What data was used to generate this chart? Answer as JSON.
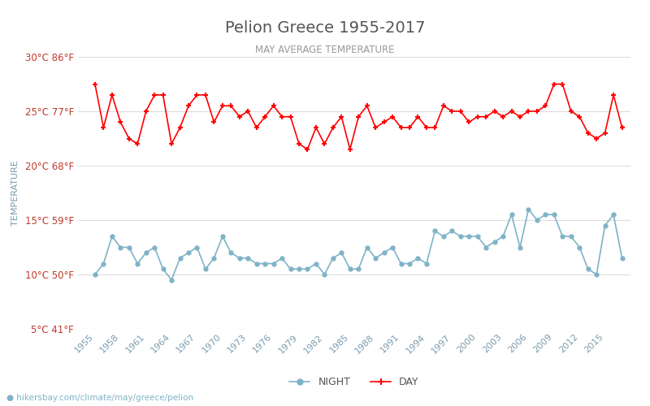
{
  "title": "Pelion Greece 1955-2017",
  "subtitle": "MAY AVERAGE TEMPERATURE",
  "ylabel": "TEMPERATURE",
  "xlabel_url": "hikersbay.com/climate/may/greece/pelion",
  "ylim": [
    5,
    30
  ],
  "yticks_c": [
    5,
    10,
    15,
    20,
    25,
    30
  ],
  "yticks_f": [
    41,
    50,
    59,
    68,
    77,
    86
  ],
  "years": [
    1955,
    1956,
    1957,
    1958,
    1959,
    1960,
    1961,
    1962,
    1963,
    1964,
    1965,
    1966,
    1967,
    1968,
    1969,
    1970,
    1971,
    1972,
    1973,
    1974,
    1975,
    1976,
    1977,
    1978,
    1979,
    1980,
    1981,
    1982,
    1983,
    1984,
    1985,
    1986,
    1987,
    1988,
    1989,
    1990,
    1991,
    1992,
    1993,
    1994,
    1995,
    1996,
    1997,
    1998,
    1999,
    2000,
    2001,
    2002,
    2003,
    2004,
    2005,
    2006,
    2007,
    2008,
    2009,
    2010,
    2011,
    2012,
    2013,
    2014,
    2015,
    2016,
    2017
  ],
  "day_temps": [
    27.5,
    23.5,
    26.5,
    24.0,
    22.5,
    22.0,
    25.0,
    26.5,
    26.5,
    22.0,
    23.5,
    25.5,
    26.5,
    26.5,
    24.0,
    25.5,
    25.5,
    24.5,
    25.0,
    23.5,
    24.5,
    25.5,
    24.5,
    24.5,
    22.0,
    21.5,
    23.5,
    22.0,
    23.5,
    24.5,
    21.5,
    24.5,
    25.5,
    23.5,
    24.0,
    24.5,
    23.5,
    23.5,
    24.5,
    23.5,
    23.5,
    25.5,
    25.0,
    25.0,
    24.0,
    24.5,
    24.5,
    25.0,
    24.5,
    25.0,
    24.5,
    25.0,
    25.0,
    25.5,
    27.5,
    27.5,
    25.0,
    24.5,
    23.0,
    22.5,
    23.0,
    26.5,
    23.5
  ],
  "night_temps": [
    10.0,
    11.0,
    13.5,
    12.5,
    12.5,
    11.0,
    12.0,
    12.5,
    10.5,
    9.5,
    11.5,
    12.0,
    12.5,
    10.5,
    11.5,
    13.5,
    12.0,
    11.5,
    11.5,
    11.0,
    11.0,
    11.0,
    11.5,
    10.5,
    10.5,
    10.5,
    11.0,
    10.0,
    11.5,
    12.0,
    10.5,
    10.5,
    12.5,
    11.5,
    12.0,
    12.5,
    11.0,
    11.0,
    11.5,
    11.0,
    14.0,
    13.5,
    14.0,
    13.5,
    13.5,
    13.5,
    12.5,
    13.0,
    13.5,
    15.5,
    12.5,
    16.0,
    15.0,
    15.5,
    15.5,
    13.5,
    13.5,
    12.5,
    10.5,
    10.0,
    14.5,
    15.5,
    11.5
  ],
  "day_color": "#ff0000",
  "night_color": "#7fb3c8",
  "background_color": "#ffffff",
  "grid_color": "#dddddd",
  "title_color": "#555555",
  "subtitle_color": "#999999",
  "ylabel_color": "#7a9cb0",
  "ytick_color": "#c0392b",
  "xtick_color": "#7a9cb0",
  "xtick_years": [
    1955,
    1958,
    1961,
    1964,
    1967,
    1970,
    1973,
    1976,
    1979,
    1982,
    1985,
    1988,
    1991,
    1994,
    1997,
    2000,
    2003,
    2006,
    2009,
    2012,
    2015
  ]
}
